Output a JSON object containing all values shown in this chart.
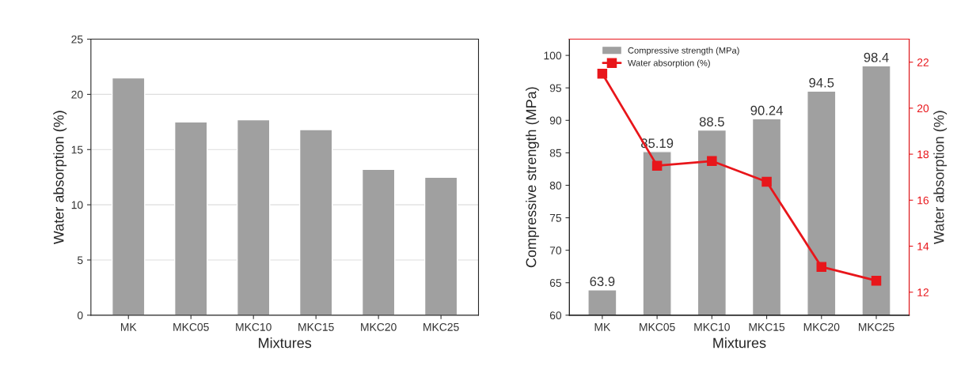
{
  "chart_data": [
    {
      "type": "bar",
      "xlabel": "Mixtures",
      "ylabel": "Water absorption (%)",
      "categories": [
        "MK",
        "MKC05",
        "MKC10",
        "MKC15",
        "MKC20",
        "MKC25"
      ],
      "series": [
        {
          "color": "#a0a0a0",
          "values": [
            21.5,
            17.5,
            17.7,
            16.8,
            13.2,
            12.5
          ]
        }
      ],
      "ylim": [
        0,
        25
      ],
      "yticks": [
        0,
        5,
        10,
        15,
        20,
        25
      ],
      "grid": "y",
      "legend": false
    },
    {
      "type": "bar",
      "xlabel": "Mixtures",
      "ylabel": "Compressive strength (MPa)",
      "y2label": "Water absorption (%)",
      "categories": [
        "MK",
        "MKC05",
        "MKC10",
        "MKC15",
        "MKC20",
        "MKC25"
      ],
      "series": [
        {
          "name": "Compressive strength (MPa)",
          "color": "#a0a0a0",
          "values": [
            63.9,
            85.19,
            88.5,
            90.24,
            94.5,
            98.4
          ],
          "value_labels": [
            "63.9",
            "85.19",
            "88.5",
            "90.24",
            "94.5",
            "98.4"
          ]
        },
        {
          "name": "Water absorption (%)",
          "type": "line",
          "axis": "y2",
          "color": "#e8161b",
          "marker": "square",
          "values": [
            21.5,
            17.5,
            17.7,
            16.8,
            13.1,
            12.5
          ]
        }
      ],
      "ylim": [
        60,
        102.5
      ],
      "yticks": [
        60,
        65,
        70,
        75,
        80,
        85,
        90,
        95,
        100
      ],
      "y2lim": [
        11,
        23
      ],
      "y2ticks": [
        12,
        14,
        16,
        18,
        20,
        22
      ],
      "legend": "top",
      "grid": false
    }
  ]
}
